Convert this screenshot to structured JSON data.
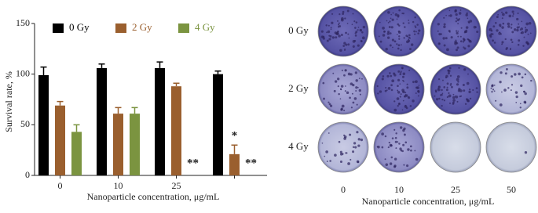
{
  "chart_data": {
    "type": "bar",
    "ylabel": "Survival rate, %",
    "xlabel": "Nanoparticle concentration, μg/mL",
    "categories": [
      "0",
      "10",
      "25",
      null
    ],
    "series": [
      {
        "name": "0 Gy",
        "color": "#000000",
        "values": [
          99,
          106,
          106,
          100
        ],
        "errors": [
          8,
          4,
          6,
          3
        ]
      },
      {
        "name": "2 Gy",
        "color": "#9a5f2e",
        "values": [
          69,
          61,
          88,
          21
        ],
        "errors": [
          4,
          6,
          3,
          9
        ]
      },
      {
        "name": "4 Gy",
        "color": "#7b9440",
        "values": [
          43,
          61,
          null,
          null
        ],
        "errors": [
          7,
          6,
          null,
          null
        ]
      }
    ],
    "annotations": [
      "**",
      "*",
      "**"
    ],
    "ylim": [
      0,
      150
    ],
    "yticks": [
      0,
      50,
      100,
      150
    ],
    "grid": false
  },
  "plate_panel": {
    "row_labels": [
      "0 Gy",
      "2 Gy",
      "4 Gy"
    ],
    "column_labels": [
      "0",
      "10",
      "25",
      "50"
    ],
    "xlabel": "Nanoparticle concentration, μg/mL"
  }
}
